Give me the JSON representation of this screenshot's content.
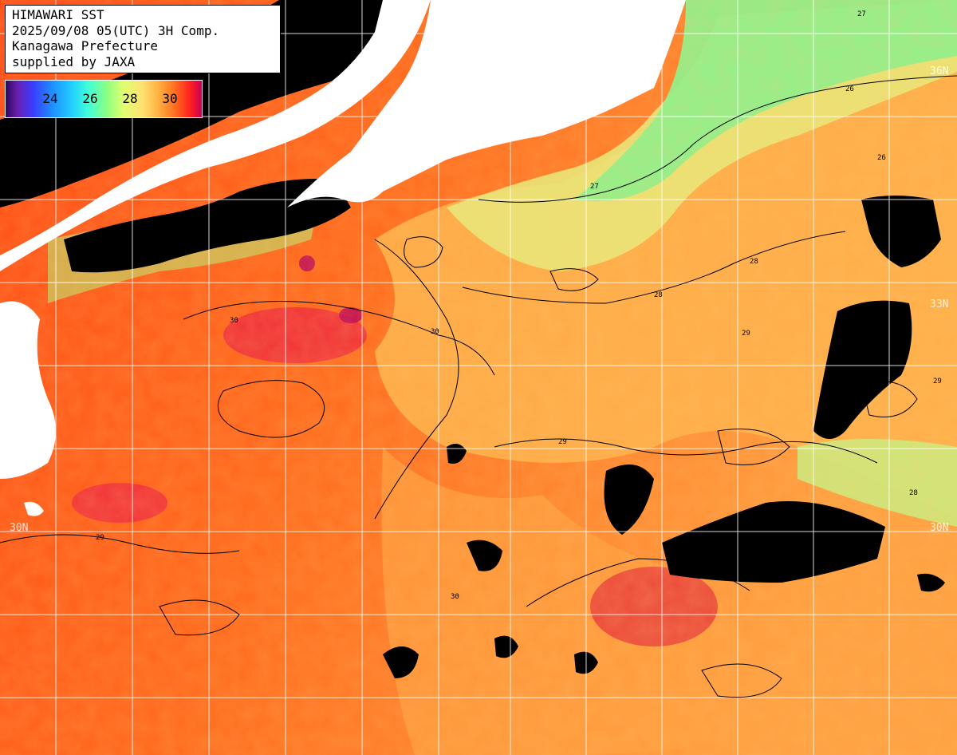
{
  "title": {
    "line1": "HIMAWARI SST",
    "line2": "2025/09/08 05(UTC) 3H Comp.",
    "line3": "Kanagawa Prefecture",
    "line4": "supplied by JAXA"
  },
  "legend": {
    "ticks": [
      "24",
      "26",
      "28",
      "30"
    ]
  },
  "lat_labels": {
    "n36_right": "36N",
    "n33_right": "33N",
    "n30_left": "30N",
    "n30_right": "30N"
  },
  "colors": {
    "land": "#ffffff",
    "cloud": "#000000",
    "sst_30": "#ff3a10",
    "sst_29": "#ff7a20",
    "sst_28": "#ffb850",
    "sst_27": "#e8e870",
    "sst_26": "#80ee80",
    "gridline": "#ffffff"
  },
  "contour_labels": [
    "28",
    "29",
    "30",
    "27",
    "26"
  ]
}
